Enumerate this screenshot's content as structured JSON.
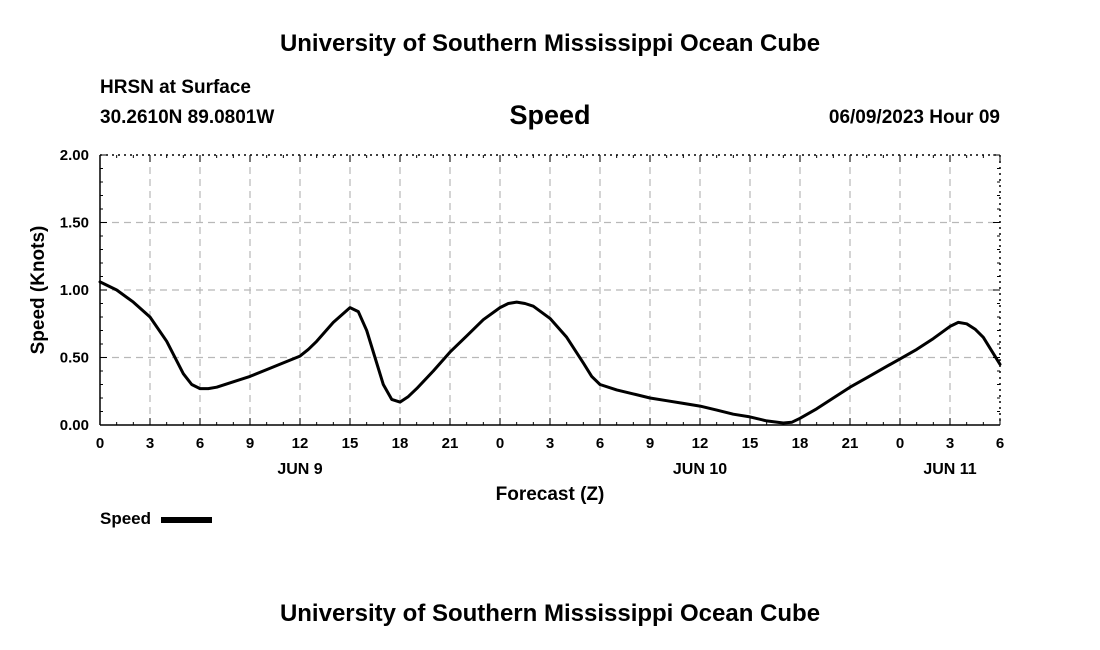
{
  "page": {
    "title_top": "University of Southern Mississippi Ocean Cube",
    "title_bottom": "University of Southern Mississippi Ocean Cube",
    "station": "HRSN at Surface",
    "coords": "30.2610N  89.0801W",
    "datetime": "06/09/2023 Hour 09"
  },
  "legend": {
    "label": "Speed",
    "color": "#000000"
  },
  "chart_data": {
    "type": "line",
    "title": "Speed",
    "xlabel": "Forecast (Z)",
    "ylabel": "Speed (Knots)",
    "xlim": [
      0,
      54
    ],
    "ylim": [
      0,
      2
    ],
    "grid": true,
    "y_ticks": [
      {
        "value": 0,
        "label": "0.00"
      },
      {
        "value": 0.5,
        "label": "0.50"
      },
      {
        "value": 1.0,
        "label": "1.00"
      },
      {
        "value": 1.5,
        "label": "1.50"
      },
      {
        "value": 2.0,
        "label": "2.00"
      }
    ],
    "x_ticks": [
      {
        "value": 0,
        "label": "0"
      },
      {
        "value": 3,
        "label": "3"
      },
      {
        "value": 6,
        "label": "6"
      },
      {
        "value": 9,
        "label": "9"
      },
      {
        "value": 12,
        "label": "12"
      },
      {
        "value": 15,
        "label": "15"
      },
      {
        "value": 18,
        "label": "18"
      },
      {
        "value": 21,
        "label": "21"
      },
      {
        "value": 24,
        "label": "0"
      },
      {
        "value": 27,
        "label": "3"
      },
      {
        "value": 30,
        "label": "6"
      },
      {
        "value": 33,
        "label": "9"
      },
      {
        "value": 36,
        "label": "12"
      },
      {
        "value": 39,
        "label": "15"
      },
      {
        "value": 42,
        "label": "18"
      },
      {
        "value": 45,
        "label": "21"
      },
      {
        "value": 48,
        "label": "0"
      },
      {
        "value": 51,
        "label": "3"
      },
      {
        "value": 54,
        "label": "6"
      }
    ],
    "date_labels": [
      {
        "value": 12,
        "label": "JUN 9"
      },
      {
        "value": 36,
        "label": "JUN 10"
      },
      {
        "value": 51,
        "label": "JUN 11"
      }
    ],
    "series": [
      {
        "name": "Speed",
        "color": "#000000",
        "x": [
          0,
          1,
          2,
          3,
          4,
          5,
          5.5,
          6,
          6.5,
          7,
          8,
          9,
          10,
          11,
          12,
          12.5,
          13,
          14,
          15,
          15.5,
          16,
          16.5,
          17,
          17.5,
          18,
          18.5,
          19,
          20,
          21,
          22,
          23,
          24,
          24.5,
          25,
          25.5,
          26,
          27,
          28,
          29,
          29.5,
          30,
          31,
          32,
          33,
          34,
          35,
          36,
          37,
          38,
          39,
          40,
          41,
          41.5,
          42,
          43,
          44,
          45,
          46,
          47,
          48,
          49,
          50,
          51,
          51.5,
          52,
          52.5,
          53,
          54
        ],
        "y": [
          1.06,
          1.0,
          0.91,
          0.8,
          0.62,
          0.38,
          0.3,
          0.27,
          0.27,
          0.28,
          0.32,
          0.36,
          0.41,
          0.46,
          0.51,
          0.56,
          0.62,
          0.76,
          0.87,
          0.84,
          0.7,
          0.5,
          0.3,
          0.19,
          0.17,
          0.21,
          0.27,
          0.4,
          0.54,
          0.66,
          0.78,
          0.87,
          0.9,
          0.91,
          0.9,
          0.88,
          0.79,
          0.65,
          0.46,
          0.36,
          0.3,
          0.26,
          0.23,
          0.2,
          0.18,
          0.16,
          0.14,
          0.11,
          0.08,
          0.06,
          0.03,
          0.015,
          0.02,
          0.05,
          0.12,
          0.2,
          0.28,
          0.35,
          0.42,
          0.49,
          0.56,
          0.64,
          0.73,
          0.76,
          0.75,
          0.71,
          0.65,
          0.45
        ]
      }
    ]
  }
}
